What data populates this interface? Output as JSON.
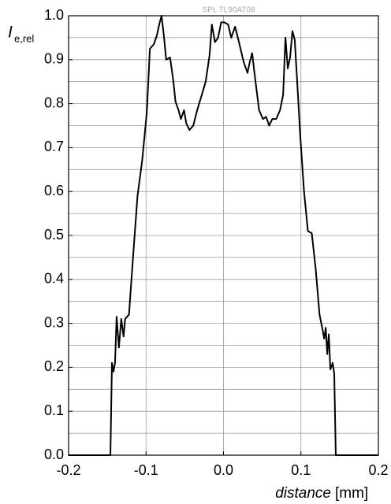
{
  "chart_data": {
    "type": "line",
    "title": "SPL TL90AT08",
    "y_label": {
      "main": "I",
      "subscript": "e,rel"
    },
    "x_label": {
      "main": "distance",
      "unit": "[mm]"
    },
    "xlim": [
      -0.2,
      0.2
    ],
    "ylim": [
      0,
      1
    ],
    "xticks": [
      {
        "value": -0.2,
        "label": "-0.2"
      },
      {
        "value": -0.1,
        "label": "-0.1"
      },
      {
        "value": 0,
        "label": "0.0"
      },
      {
        "value": 0.1,
        "label": "0.1"
      },
      {
        "value": 0.2,
        "label": "0.2"
      }
    ],
    "yticks": [
      {
        "value": 0,
        "label": "0.0"
      },
      {
        "value": 0.1,
        "label": "0.1"
      },
      {
        "value": 0.2,
        "label": "0.2"
      },
      {
        "value": 0.3,
        "label": "0.3"
      },
      {
        "value": 0.4,
        "label": "0.4"
      },
      {
        "value": 0.5,
        "label": "0.5"
      },
      {
        "value": 0.6,
        "label": "0.6"
      },
      {
        "value": 0.7,
        "label": "0.7"
      },
      {
        "value": 0.8,
        "label": "0.8"
      },
      {
        "value": 0.9,
        "label": "0.9"
      },
      {
        "value": 1,
        "label": "1.0"
      }
    ],
    "y_minor_grid": [
      0.05,
      0.15,
      0.25,
      0.35,
      0.45,
      0.55,
      0.65,
      0.75,
      0.85,
      0.95
    ],
    "x_grid": [
      -0.1,
      0,
      0.1
    ],
    "grid": true,
    "series": [
      {
        "color": "#000000",
        "x": [
          -0.2,
          -0.146,
          -0.144,
          -0.142,
          -0.14,
          -0.138,
          -0.135,
          -0.132,
          -0.129,
          -0.127,
          -0.122,
          -0.117,
          -0.111,
          -0.105,
          -0.099,
          -0.095,
          -0.09,
          -0.086,
          -0.083,
          -0.08,
          -0.077,
          -0.074,
          -0.069,
          -0.065,
          -0.062,
          -0.058,
          -0.055,
          -0.051,
          -0.048,
          -0.044,
          -0.039,
          -0.034,
          -0.028,
          -0.023,
          -0.018,
          -0.015,
          -0.011,
          -0.007,
          -0.003,
          0.001,
          0.006,
          0.01,
          0.015,
          0.02,
          0.026,
          0.031,
          0.034,
          0.037,
          0.041,
          0.046,
          0.051,
          0.055,
          0.059,
          0.063,
          0.068,
          0.073,
          0.077,
          0.08,
          0.083,
          0.086,
          0.089,
          0.092,
          0.095,
          0.099,
          0.104,
          0.109,
          0.114,
          0.119,
          0.124,
          0.128,
          0.13,
          0.132,
          0.134,
          0.136,
          0.138,
          0.141,
          0.143,
          0.145,
          0.2
        ],
        "values": [
          0,
          0,
          0.21,
          0.19,
          0.21,
          0.315,
          0.245,
          0.31,
          0.27,
          0.31,
          0.32,
          0.445,
          0.59,
          0.67,
          0.78,
          0.925,
          0.935,
          0.955,
          0.98,
          1.0,
          0.955,
          0.9,
          0.905,
          0.855,
          0.805,
          0.785,
          0.765,
          0.785,
          0.755,
          0.74,
          0.75,
          0.785,
          0.82,
          0.85,
          0.91,
          0.98,
          0.94,
          0.95,
          0.985,
          0.985,
          0.98,
          0.95,
          0.975,
          0.94,
          0.895,
          0.87,
          0.895,
          0.915,
          0.855,
          0.785,
          0.765,
          0.77,
          0.75,
          0.765,
          0.765,
          0.785,
          0.82,
          0.95,
          0.88,
          0.905,
          0.965,
          0.945,
          0.855,
          0.73,
          0.6,
          0.51,
          0.505,
          0.425,
          0.32,
          0.285,
          0.265,
          0.29,
          0.23,
          0.275,
          0.195,
          0.21,
          0.185,
          0,
          0
        ]
      }
    ]
  }
}
